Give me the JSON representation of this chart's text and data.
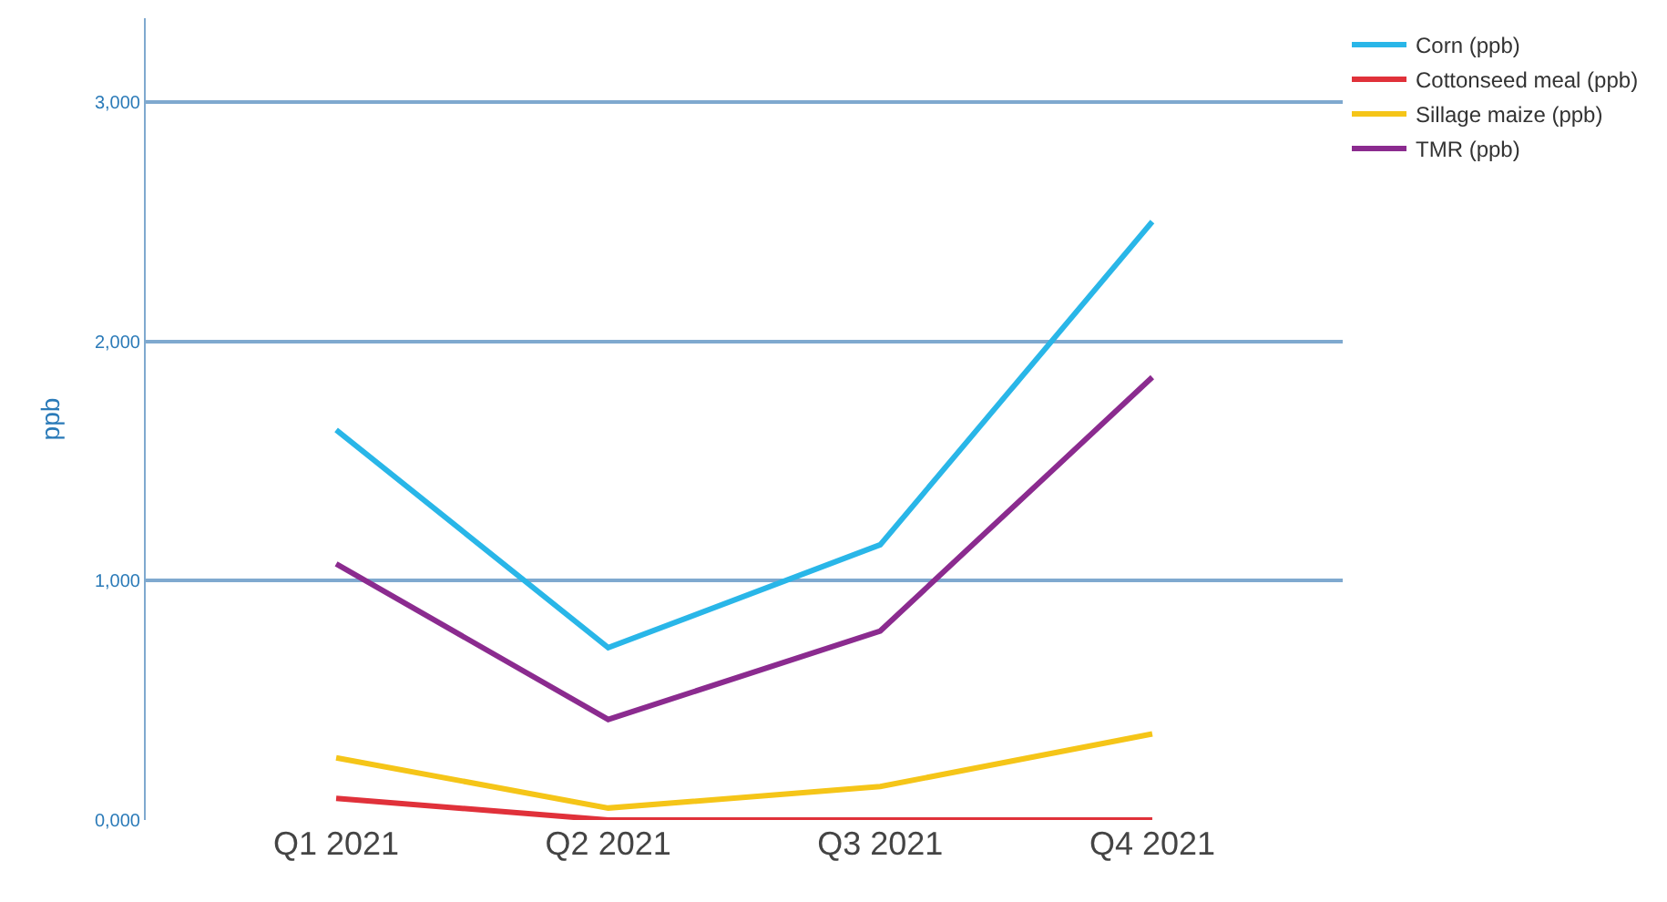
{
  "chart_data": {
    "type": "line",
    "ylabel": "ppb",
    "categories": [
      "Q1 2021",
      "Q2 2021",
      "Q3 2021",
      "Q4 2021"
    ],
    "series": [
      {
        "name": "Corn (ppb)",
        "color": "#29b6e8",
        "values": [
          1630,
          720,
          1150,
          2500
        ]
      },
      {
        "name": "Cottonseed meal (ppb)",
        "color": "#e0313a",
        "values": [
          90,
          0,
          0,
          0
        ]
      },
      {
        "name": "Sillage maize (ppb)",
        "color": "#f5c518",
        "values": [
          260,
          50,
          140,
          360
        ]
      },
      {
        "name": "TMR (ppb)",
        "color": "#8b2b8f",
        "values": [
          1070,
          420,
          790,
          1850
        ]
      }
    ],
    "ylim": [
      0,
      3350
    ],
    "yticks": [
      {
        "value": 0,
        "label": "0,000"
      },
      {
        "value": 1000,
        "label": "1,000"
      },
      {
        "value": 2000,
        "label": "2,000"
      },
      {
        "value": 3000,
        "label": "3,000"
      }
    ],
    "grid": "y",
    "legend": "top right",
    "marker": "none",
    "line_style": "solid"
  }
}
